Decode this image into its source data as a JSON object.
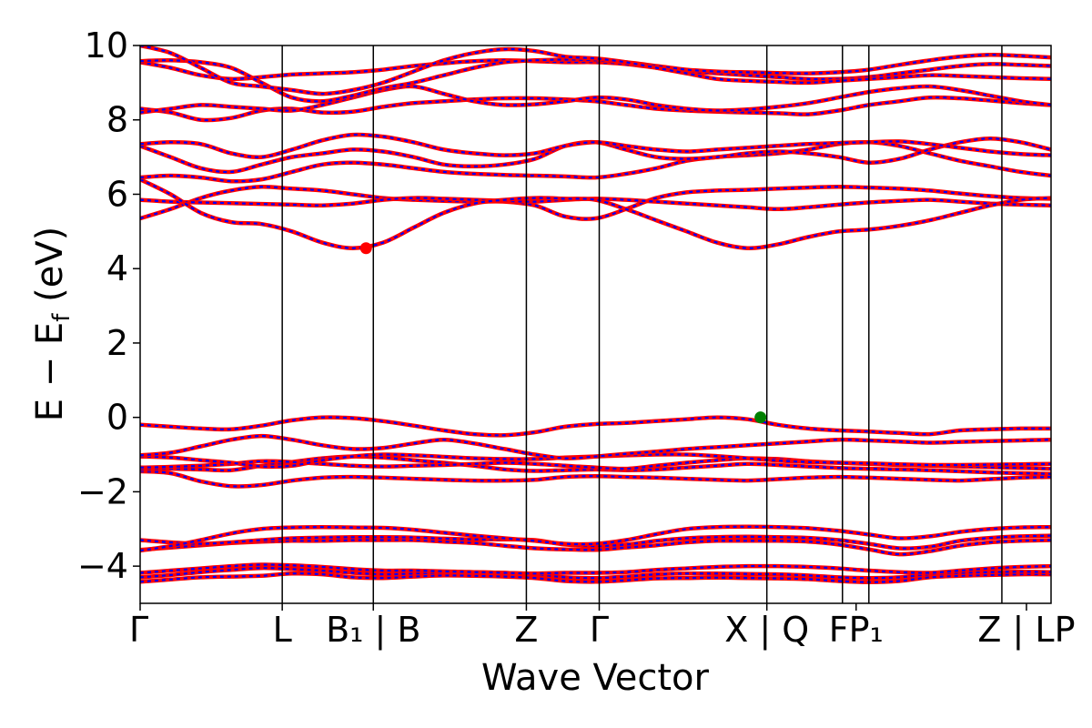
{
  "chart_data": {
    "type": "line",
    "xlabel": "Wave Vector",
    "ylabel": "E − E_f (eV)",
    "ylabel_parts": {
      "main": "E − E",
      "sub": "f",
      "unit": " (eV)"
    },
    "ylim": [
      -5,
      10
    ],
    "yticks": [
      10,
      8,
      6,
      4,
      2,
      0,
      -2,
      -4
    ],
    "ytick_labels": [
      "10",
      "8",
      "6",
      "4",
      "2",
      "0",
      "−2",
      "−4"
    ],
    "xlim": [
      0,
      1
    ],
    "kpoint_positions": [
      0.0,
      0.156,
      0.256,
      0.424,
      0.504,
      0.688,
      0.771,
      0.8,
      0.946,
      1.0
    ],
    "xticks": [
      {
        "label": "Γ",
        "x": 0.0
      },
      {
        "label": "L",
        "x": 0.156
      },
      {
        "label": "B₁ | B",
        "x": 0.256
      },
      {
        "label": "Z",
        "x": 0.424
      },
      {
        "label": "Γ",
        "x": 0.504
      },
      {
        "label": "X | Q",
        "x": 0.688
      },
      {
        "label": "FP₁",
        "x": 0.786
      },
      {
        "label": "Z | LP",
        "x": 0.973
      }
    ],
    "markers": [
      {
        "name": "CBM",
        "x": 0.248,
        "y": 4.55,
        "color": "#ff0000"
      },
      {
        "name": "VBM",
        "x": 0.681,
        "y": 0.0,
        "color": "#008000"
      }
    ],
    "line_colors": {
      "primary": "#ff0000",
      "overlay": "#0000ff"
    },
    "series": [
      {
        "values": [
          -4.42,
          -4.36,
          -4.3,
          -4.28,
          -4.26,
          -4.2,
          -4.22,
          -4.3,
          -4.32,
          -4.28,
          -4.25,
          -4.26,
          -4.28,
          -4.32,
          -4.4,
          -4.42,
          -4.38,
          -4.33,
          -4.32,
          -4.31,
          -4.32,
          -4.33,
          -4.35,
          -4.4,
          -4.43,
          -4.4,
          -4.3,
          -4.26,
          -4.24,
          -4.22,
          -4.22
        ]
      },
      {
        "values": [
          -4.3,
          -4.24,
          -4.16,
          -4.1,
          -4.05,
          -4.08,
          -4.12,
          -4.18,
          -4.22,
          -4.2,
          -4.17,
          -4.16,
          -4.18,
          -4.22,
          -4.3,
          -4.32,
          -4.28,
          -4.22,
          -4.2,
          -4.2,
          -4.21,
          -4.22,
          -4.25,
          -4.3,
          -4.32,
          -4.3,
          -4.22,
          -4.18,
          -4.16,
          -4.15,
          -4.16
        ]
      },
      {
        "values": [
          -4.18,
          -4.12,
          -4.06,
          -4.0,
          -3.96,
          -3.98,
          -4.02,
          -4.08,
          -4.12,
          -4.12,
          -4.14,
          -4.16,
          -4.18,
          -4.2,
          -4.18,
          -4.18,
          -4.16,
          -4.1,
          -4.06,
          -4.02,
          -4.0,
          -4.0,
          -4.02,
          -4.06,
          -4.12,
          -4.16,
          -4.18,
          -4.12,
          -4.06,
          -4.02,
          -4.0
        ]
      },
      {
        "values": [
          -3.56,
          -3.5,
          -3.44,
          -3.38,
          -3.34,
          -3.32,
          -3.32,
          -3.3,
          -3.3,
          -3.3,
          -3.34,
          -3.38,
          -3.45,
          -3.52,
          -3.55,
          -3.56,
          -3.5,
          -3.44,
          -3.36,
          -3.32,
          -3.32,
          -3.32,
          -3.34,
          -3.42,
          -3.55,
          -3.68,
          -3.6,
          -3.45,
          -3.36,
          -3.32,
          -3.3
        ]
      },
      {
        "values": [
          -3.3,
          -3.36,
          -3.4,
          -3.36,
          -3.3,
          -3.25,
          -3.23,
          -3.22,
          -3.22,
          -3.23,
          -3.26,
          -3.28,
          -3.28,
          -3.3,
          -3.42,
          -3.46,
          -3.42,
          -3.32,
          -3.25,
          -3.22,
          -3.21,
          -3.22,
          -3.24,
          -3.3,
          -3.4,
          -3.52,
          -3.48,
          -3.32,
          -3.24,
          -3.2,
          -3.18
        ]
      },
      {
        "values": [
          -3.58,
          -3.46,
          -3.3,
          -3.12,
          -3.0,
          -2.96,
          -2.95,
          -2.96,
          -2.97,
          -3.02,
          -3.1,
          -3.18,
          -3.25,
          -3.32,
          -3.4,
          -3.4,
          -3.3,
          -3.14,
          -3.0,
          -2.95,
          -2.94,
          -2.95,
          -2.98,
          -3.05,
          -3.15,
          -3.25,
          -3.2,
          -3.08,
          -3.0,
          -2.96,
          -2.95
        ]
      },
      {
        "values": [
          -1.45,
          -1.5,
          -1.72,
          -1.85,
          -1.82,
          -1.7,
          -1.62,
          -1.6,
          -1.62,
          -1.65,
          -1.68,
          -1.7,
          -1.7,
          -1.68,
          -1.6,
          -1.58,
          -1.6,
          -1.62,
          -1.65,
          -1.68,
          -1.7,
          -1.66,
          -1.62,
          -1.6,
          -1.62,
          -1.65,
          -1.68,
          -1.7,
          -1.66,
          -1.62,
          -1.6
        ]
      },
      {
        "values": [
          -1.4,
          -1.38,
          -1.4,
          -1.42,
          -1.3,
          -1.2,
          -1.1,
          -1.05,
          -1.08,
          -1.15,
          -1.22,
          -1.3,
          -1.4,
          -1.44,
          -1.42,
          -1.4,
          -1.42,
          -1.4,
          -1.35,
          -1.3,
          -1.25,
          -1.28,
          -1.32,
          -1.36,
          -1.38,
          -1.4,
          -1.42,
          -1.45,
          -1.48,
          -1.5,
          -1.52
        ]
      },
      {
        "values": [
          -1.35,
          -1.33,
          -1.3,
          -1.25,
          -1.18,
          -1.2,
          -1.25,
          -1.3,
          -1.32,
          -1.3,
          -1.28,
          -1.25,
          -1.22,
          -1.25,
          -1.3,
          -1.35,
          -1.38,
          -1.3,
          -1.22,
          -1.15,
          -1.1,
          -1.12,
          -1.18,
          -1.22,
          -1.25,
          -1.28,
          -1.3,
          -1.32,
          -1.34,
          -1.36,
          -1.38
        ]
      },
      {
        "values": [
          -1.05,
          -1.08,
          -1.15,
          -1.22,
          -1.32,
          -1.3,
          -1.15,
          -1.05,
          -1.0,
          -1.02,
          -1.06,
          -1.1,
          -1.12,
          -1.12,
          -1.08,
          -1.05,
          -1.02,
          -1.0,
          -1.0,
          -1.04,
          -1.1,
          -1.16,
          -1.2,
          -1.22,
          -1.24,
          -1.26,
          -1.28,
          -1.28,
          -1.27,
          -1.26,
          -1.25
        ]
      },
      {
        "values": [
          -1.02,
          -0.95,
          -0.78,
          -0.6,
          -0.5,
          -0.6,
          -0.75,
          -0.85,
          -0.82,
          -0.7,
          -0.6,
          -0.7,
          -0.85,
          -1.0,
          -1.1,
          -1.05,
          -0.98,
          -0.92,
          -0.85,
          -0.8,
          -0.75,
          -0.7,
          -0.65,
          -0.6,
          -0.62,
          -0.65,
          -0.68,
          -0.66,
          -0.64,
          -0.62,
          -0.6
        ]
      },
      {
        "values": [
          -0.2,
          -0.25,
          -0.3,
          -0.32,
          -0.22,
          -0.08,
          0.0,
          -0.02,
          -0.1,
          -0.22,
          -0.35,
          -0.45,
          -0.48,
          -0.4,
          -0.25,
          -0.18,
          -0.15,
          -0.1,
          -0.05,
          0.0,
          -0.05,
          -0.2,
          -0.3,
          -0.35,
          -0.38,
          -0.42,
          -0.45,
          -0.35,
          -0.32,
          -0.3,
          -0.3
        ]
      },
      {
        "values": [
          5.35,
          5.6,
          5.9,
          6.1,
          6.2,
          6.15,
          6.1,
          6.0,
          5.9,
          5.85,
          5.82,
          5.8,
          5.8,
          5.7,
          5.4,
          5.35,
          5.6,
          5.9,
          6.05,
          6.1,
          6.12,
          6.15,
          6.18,
          6.2,
          6.18,
          6.15,
          6.1,
          6.02,
          5.95,
          5.9,
          5.88
        ]
      },
      {
        "values": [
          5.85,
          5.8,
          5.78,
          5.76,
          5.74,
          5.72,
          5.7,
          5.75,
          5.85,
          5.9,
          5.88,
          5.85,
          5.82,
          5.8,
          5.85,
          5.88,
          5.85,
          5.8,
          5.75,
          5.7,
          5.65,
          5.6,
          5.65,
          5.72,
          5.78,
          5.82,
          5.85,
          5.8,
          5.75,
          5.72,
          5.7
        ]
      },
      {
        "values": [
          6.4,
          6.0,
          5.5,
          5.25,
          5.2,
          5.0,
          4.7,
          4.55,
          4.7,
          5.1,
          5.5,
          5.75,
          5.85,
          5.9,
          5.88,
          5.85,
          5.6,
          5.3,
          5.0,
          4.7,
          4.55,
          4.65,
          4.85,
          5.0,
          5.05,
          5.15,
          5.3,
          5.5,
          5.7,
          5.85,
          5.9
        ]
      },
      {
        "values": [
          6.45,
          6.5,
          6.45,
          6.35,
          6.4,
          6.6,
          6.8,
          6.85,
          6.8,
          6.7,
          6.6,
          6.55,
          6.52,
          6.5,
          6.48,
          6.45,
          6.55,
          6.7,
          6.9,
          7.0,
          7.05,
          7.1,
          7.2,
          7.35,
          7.4,
          7.3,
          7.1,
          6.9,
          6.75,
          6.6,
          6.5
        ]
      },
      {
        "values": [
          7.3,
          7.0,
          6.7,
          6.6,
          6.8,
          7.0,
          7.1,
          7.2,
          7.15,
          7.0,
          6.8,
          6.75,
          6.8,
          6.95,
          7.3,
          7.4,
          7.2,
          7.0,
          6.95,
          7.0,
          7.1,
          7.15,
          7.1,
          7.0,
          6.85,
          6.95,
          7.2,
          7.4,
          7.5,
          7.4,
          7.2
        ]
      },
      {
        "values": [
          7.35,
          7.4,
          7.35,
          7.1,
          7.0,
          7.2,
          7.45,
          7.6,
          7.55,
          7.4,
          7.2,
          7.1,
          7.05,
          7.1,
          7.3,
          7.4,
          7.3,
          7.2,
          7.15,
          7.2,
          7.25,
          7.3,
          7.35,
          7.38,
          7.4,
          7.42,
          7.35,
          7.25,
          7.15,
          7.08,
          7.05
        ]
      },
      {
        "values": [
          8.3,
          8.2,
          8.0,
          8.05,
          8.25,
          8.3,
          8.2,
          8.22,
          8.35,
          8.45,
          8.5,
          8.55,
          8.58,
          8.58,
          8.55,
          8.5,
          8.4,
          8.3,
          8.25,
          8.22,
          8.2,
          8.18,
          8.15,
          8.25,
          8.4,
          8.5,
          8.6,
          8.58,
          8.52,
          8.45,
          8.4
        ]
      },
      {
        "values": [
          8.2,
          8.3,
          8.4,
          8.35,
          8.3,
          8.25,
          8.4,
          8.6,
          8.8,
          8.9,
          8.7,
          8.5,
          8.4,
          8.42,
          8.5,
          8.6,
          8.55,
          8.4,
          8.3,
          8.25,
          8.28,
          8.35,
          8.45,
          8.6,
          8.75,
          8.85,
          8.9,
          8.8,
          8.65,
          8.5,
          8.4
        ]
      },
      {
        "values": [
          9.55,
          9.4,
          9.2,
          9.1,
          9.15,
          9.22,
          9.25,
          9.28,
          9.35,
          9.45,
          9.52,
          9.58,
          9.6,
          9.58,
          9.55,
          9.55,
          9.5,
          9.4,
          9.3,
          9.25,
          9.2,
          9.15,
          9.1,
          9.1,
          9.15,
          9.25,
          9.35,
          9.45,
          9.5,
          9.48,
          9.45
        ]
      },
      {
        "values": [
          9.58,
          9.6,
          9.55,
          9.4,
          9.0,
          8.6,
          8.5,
          8.65,
          8.85,
          9.0,
          9.2,
          9.4,
          9.55,
          9.6,
          9.62,
          9.6,
          9.55,
          9.45,
          9.35,
          9.3,
          9.28,
          9.26,
          9.25,
          9.28,
          9.35,
          9.48,
          9.6,
          9.7,
          9.75,
          9.72,
          9.68
        ]
      },
      {
        "values": [
          10.0,
          9.8,
          9.4,
          9.0,
          8.9,
          8.8,
          8.7,
          8.8,
          9.0,
          9.3,
          9.6,
          9.8,
          9.9,
          9.85,
          9.7,
          9.65,
          9.55,
          9.4,
          9.25,
          9.1,
          9.05,
          9.02,
          9.0,
          9.05,
          9.1,
          9.15,
          9.2,
          9.18,
          9.15,
          9.12,
          9.1
        ]
      }
    ]
  }
}
